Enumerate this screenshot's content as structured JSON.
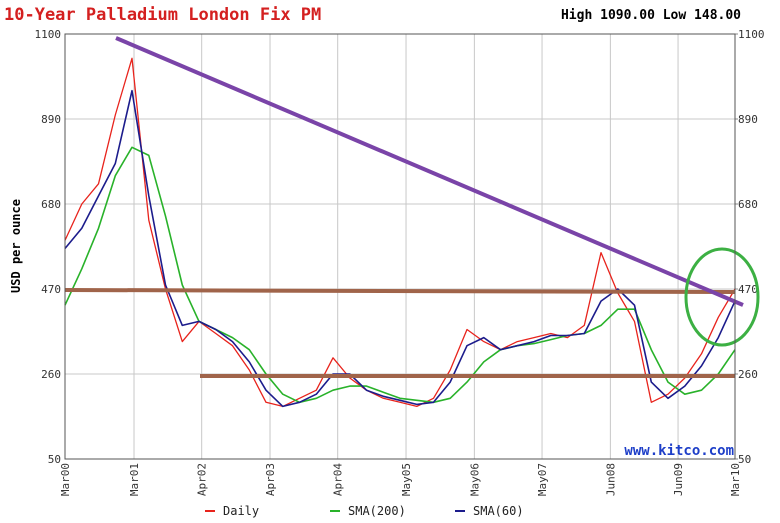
{
  "chart_data": {
    "type": "line",
    "title": "10-Year Palladium London Fix PM",
    "subtitle": "High 1090.00 Low 148.00",
    "y_label": "USD per ounce",
    "watermark": "www.kitco.com",
    "x": [
      2000.17,
      2000.42,
      2000.67,
      2000.92,
      2001.17,
      2001.42,
      2001.67,
      2001.92,
      2002.17,
      2002.42,
      2002.67,
      2002.92,
      2003.17,
      2003.42,
      2003.67,
      2003.92,
      2004.17,
      2004.42,
      2004.67,
      2004.92,
      2005.17,
      2005.42,
      2005.67,
      2005.92,
      2006.17,
      2006.42,
      2006.67,
      2006.92,
      2007.17,
      2007.42,
      2007.67,
      2007.92,
      2008.17,
      2008.42,
      2008.67,
      2008.92,
      2009.17,
      2009.42,
      2009.67,
      2009.92,
      2010.17
    ],
    "series": [
      {
        "name": "Daily",
        "color": "#e8231c",
        "values": [
          590,
          680,
          730,
          900,
          1040,
          640,
          470,
          340,
          390,
          360,
          330,
          270,
          190,
          180,
          200,
          220,
          300,
          250,
          220,
          200,
          190,
          180,
          200,
          270,
          370,
          340,
          320,
          340,
          350,
          360,
          350,
          380,
          560,
          460,
          390,
          190,
          210,
          250,
          310,
          400,
          470
        ]
      },
      {
        "name": "SMA(200)",
        "color": "#29b22a",
        "values": [
          430,
          520,
          620,
          750,
          820,
          800,
          650,
          480,
          390,
          370,
          350,
          320,
          260,
          210,
          190,
          200,
          220,
          230,
          230,
          215,
          200,
          195,
          190,
          200,
          240,
          290,
          320,
          330,
          335,
          345,
          355,
          360,
          380,
          420,
          420,
          320,
          240,
          210,
          220,
          260,
          320
        ]
      },
      {
        "name": "SMA(60)",
        "color": "#1c1c8c",
        "values": [
          570,
          620,
          700,
          780,
          960,
          700,
          480,
          380,
          390,
          370,
          340,
          290,
          220,
          180,
          190,
          210,
          260,
          260,
          220,
          205,
          195,
          185,
          190,
          240,
          330,
          350,
          320,
          330,
          340,
          355,
          355,
          360,
          440,
          470,
          430,
          240,
          200,
          230,
          280,
          350,
          440
        ]
      }
    ],
    "xlim": [
      2000.17,
      2010.17
    ],
    "xticks": [
      {
        "value": 2000.17,
        "label": "Mar00"
      },
      {
        "value": 2001.2,
        "label": "Mar01"
      },
      {
        "value": 2002.21,
        "label": "Apr02"
      },
      {
        "value": 2003.23,
        "label": "Apr03"
      },
      {
        "value": 2004.24,
        "label": "Apr04"
      },
      {
        "value": 2005.26,
        "label": "May05"
      },
      {
        "value": 2006.28,
        "label": "May06"
      },
      {
        "value": 2007.29,
        "label": "May07"
      },
      {
        "value": 2008.31,
        "label": "Jun08"
      },
      {
        "value": 2009.32,
        "label": "Jun09"
      },
      {
        "value": 2010.17,
        "label": "Mar10"
      }
    ],
    "ylim": [
      50,
      1100
    ],
    "yticks": [
      50,
      260,
      470,
      680,
      890,
      1100
    ],
    "y2lim": [
      50,
      1100
    ],
    "y2ticks": [
      50,
      260,
      470,
      680,
      890,
      1100
    ],
    "grid": true,
    "legend": "bottom"
  }
}
